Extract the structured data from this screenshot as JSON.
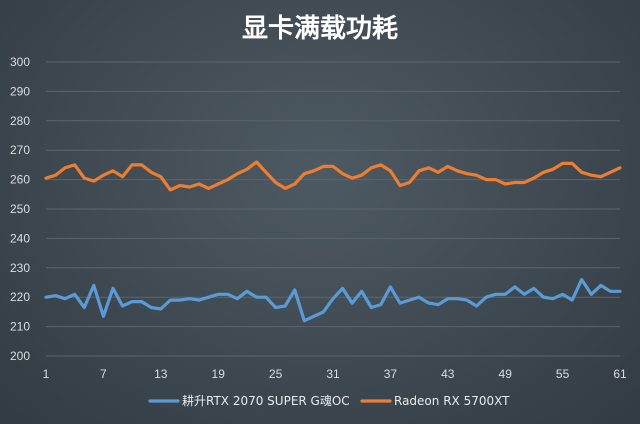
{
  "chart_data": {
    "type": "line",
    "title": "显卡满载功耗",
    "xlabel": "",
    "ylabel": "",
    "ylim": [
      200,
      300
    ],
    "y_ticks": [
      200,
      210,
      220,
      230,
      240,
      250,
      260,
      270,
      280,
      290,
      300
    ],
    "x_ticks": [
      1,
      7,
      13,
      19,
      25,
      31,
      37,
      43,
      49,
      55,
      61
    ],
    "grid": true,
    "legend_position": "bottom",
    "x": [
      1,
      2,
      3,
      4,
      5,
      6,
      7,
      8,
      9,
      10,
      11,
      12,
      13,
      14,
      15,
      16,
      17,
      18,
      19,
      20,
      21,
      22,
      23,
      24,
      25,
      26,
      27,
      28,
      29,
      30,
      31,
      32,
      33,
      34,
      35,
      36,
      37,
      38,
      39,
      40,
      41,
      42,
      43,
      44,
      45,
      46,
      47,
      48,
      49,
      50,
      51,
      52,
      53,
      54,
      55,
      56,
      57,
      58,
      59,
      60,
      61
    ],
    "series": [
      {
        "name": "耕升RTX 2070 SUPER G魂OC",
        "color": "#5b9bd5",
        "values": [
          220,
          220.5,
          219.5,
          221,
          216.5,
          224,
          213.5,
          223,
          217,
          218.5,
          218.5,
          216.5,
          216,
          219,
          219,
          219.5,
          219,
          220,
          221,
          221,
          219.5,
          222,
          220,
          220,
          216.5,
          217,
          222.5,
          212,
          213.5,
          215,
          219.5,
          223,
          218,
          222,
          216.5,
          217.5,
          223.5,
          218,
          219,
          220,
          218,
          217.5,
          219.5,
          219.5,
          219,
          217,
          220,
          221,
          221,
          223.5,
          221,
          223,
          220,
          219.5,
          221,
          219,
          226,
          221,
          224,
          222,
          222
        ]
      },
      {
        "name": "Radeon RX 5700XT",
        "color": "#ed7d31",
        "values": [
          260.5,
          261.5,
          264,
          265,
          260.5,
          259.5,
          261.5,
          263,
          261,
          265,
          265,
          262.5,
          261,
          256.5,
          258,
          257.5,
          258.5,
          257,
          258.5,
          260,
          262,
          263.5,
          266,
          262.5,
          259,
          257,
          258.5,
          262,
          263,
          264.5,
          264.5,
          262,
          260.5,
          261.5,
          264,
          265,
          263,
          258,
          259,
          263,
          264,
          262.5,
          264.5,
          263,
          262,
          261.5,
          260,
          260,
          258.5,
          259,
          259,
          260.5,
          262.5,
          263.5,
          265.5,
          265.5,
          262.5,
          261.5,
          261,
          262.5,
          264
        ]
      }
    ]
  }
}
